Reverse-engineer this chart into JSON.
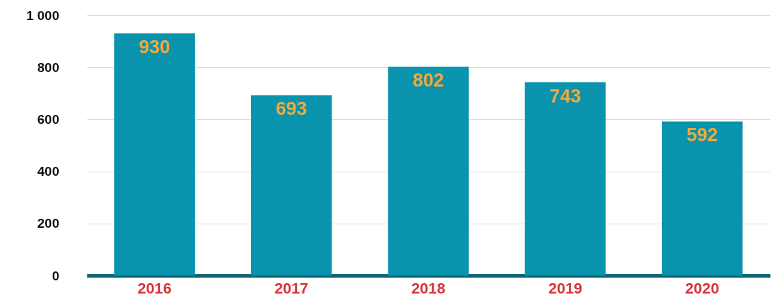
{
  "chart_data": {
    "type": "bar",
    "categories": [
      "2016",
      "2017",
      "2018",
      "2019",
      "2020"
    ],
    "values": [
      930,
      693,
      802,
      743,
      592
    ],
    "color": "#0a93ad",
    "ylim": [
      0,
      1000
    ],
    "yticks": [
      0,
      200,
      400,
      600,
      800,
      {
        "value": 1000,
        "label": "1 000"
      }
    ],
    "grid": "y",
    "data_labels": true
  }
}
